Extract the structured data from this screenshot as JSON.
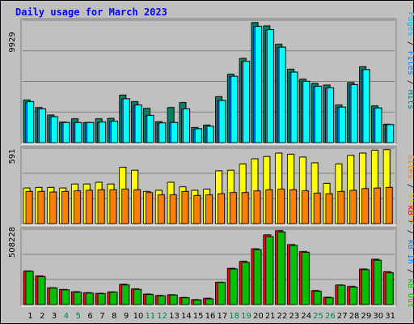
{
  "title": "Daily usage for March 2023",
  "colors": {
    "hits": "#00ffff",
    "files": "#0080ff",
    "pages": "#00c0ff",
    "pages_shadow": "#008060",
    "visits": "#ffff00",
    "sites": "#ff8000",
    "kb_in": "#00c000",
    "kb_out": "#ff0000",
    "title": "#0000ff",
    "weekend_day": "#00805c",
    "weekday_day": "#000000"
  },
  "right_labels": {
    "top": {
      "pages": "Pages",
      "sep1": " / ",
      "files": "Files",
      "sep2": " / ",
      "hits": "Hits"
    },
    "mid": {
      "visits": "Visits",
      "sep": " / ",
      "sites": "Sites"
    },
    "bot": {
      "kbout": "kB Out",
      "sep1": " / ",
      "kbin": "kB In",
      "sep2": " / ",
      "kbf": "kB F"
    }
  },
  "chart_data": [
    {
      "type": "bar",
      "title": "Daily usage for March 2023",
      "categories": [
        "1",
        "2",
        "3",
        "4",
        "5",
        "6",
        "7",
        "8",
        "9",
        "10",
        "11",
        "12",
        "13",
        "14",
        "15",
        "16",
        "17",
        "18",
        "19",
        "20",
        "21",
        "22",
        "23",
        "24",
        "25",
        "26",
        "27",
        "28",
        "29",
        "30",
        "31"
      ],
      "weekend": [
        4,
        5,
        11,
        12,
        18,
        19,
        25,
        26
      ],
      "ymax_label": "9929",
      "ymax": 9929,
      "series": [
        {
          "name": "Pages",
          "values": [
            5100,
            4200,
            3300,
            2450,
            2850,
            2400,
            2850,
            2900,
            5700,
            4900,
            4100,
            2500,
            4200,
            4800,
            1800,
            2100,
            5500,
            8200,
            10100,
            14400,
            14000,
            11800,
            8800,
            7600,
            7100,
            6900,
            4500,
            7200,
            9100,
            4400,
            2200
          ]
        },
        {
          "name": "Files",
          "values": [
            4800,
            4000,
            3050,
            2350,
            2350,
            2350,
            2400,
            2500,
            5200,
            4450,
            3200,
            2300,
            2350,
            4000,
            1600,
            1900,
            5000,
            7900,
            9700,
            13900,
            13500,
            11400,
            8400,
            7300,
            6700,
            6500,
            4200,
            6900,
            8700,
            4100,
            2100
          ]
        },
        {
          "name": "Hits",
          "values": [
            4900,
            4050,
            3100,
            2400,
            2400,
            2400,
            2450,
            2550,
            5250,
            4500,
            3250,
            2350,
            2400,
            4050,
            1650,
            1950,
            5050,
            7950,
            9750,
            13950,
            13550,
            11450,
            8450,
            7350,
            6750,
            6550,
            4250,
            6950,
            8750,
            4150,
            2150
          ]
        }
      ]
    },
    {
      "type": "bar",
      "categories": [
        "1",
        "2",
        "3",
        "4",
        "5",
        "6",
        "7",
        "8",
        "9",
        "10",
        "11",
        "12",
        "13",
        "14",
        "15",
        "16",
        "17",
        "18",
        "19",
        "20",
        "21",
        "22",
        "23",
        "24",
        "25",
        "26",
        "27",
        "28",
        "29",
        "30",
        "31"
      ],
      "ymax_label": "591",
      "ymax": 591,
      "series": [
        {
          "name": "Visits",
          "values": [
            310,
            315,
            315,
            310,
            345,
            345,
            360,
            345,
            490,
            465,
            280,
            290,
            360,
            320,
            290,
            300,
            460,
            465,
            520,
            565,
            585,
            615,
            605,
            580,
            530,
            350,
            520,
            595,
            615,
            640,
            645
          ]
        },
        {
          "name": "Sites",
          "values": [
            280,
            280,
            275,
            280,
            285,
            290,
            295,
            295,
            300,
            295,
            270,
            250,
            250,
            280,
            245,
            250,
            260,
            270,
            270,
            285,
            295,
            300,
            295,
            285,
            265,
            260,
            280,
            290,
            305,
            310,
            315
          ]
        }
      ]
    },
    {
      "type": "bar",
      "categories": [
        "1",
        "2",
        "3",
        "4",
        "5",
        "6",
        "7",
        "8",
        "9",
        "10",
        "11",
        "12",
        "13",
        "14",
        "15",
        "16",
        "17",
        "18",
        "19",
        "20",
        "21",
        "22",
        "23",
        "24",
        "25",
        "26",
        "27",
        "28",
        "29",
        "30",
        "31"
      ],
      "ymax_label": "508228",
      "ymax": 508228,
      "series": [
        {
          "name": "kB F",
          "values": [
            240000,
            205000,
            120000,
            108000,
            92000,
            85000,
            80000,
            90000,
            145000,
            112000,
            75000,
            65000,
            70000,
            50000,
            35000,
            45000,
            160000,
            260000,
            310000,
            400000,
            500000,
            530000,
            430000,
            380000,
            100000,
            52000,
            140000,
            130000,
            255000,
            325000,
            235000
          ]
        },
        {
          "name": "kB In",
          "values": [
            238000,
            200000,
            118000,
            105000,
            88000,
            82000,
            78000,
            88000,
            140000,
            108000,
            72000,
            62000,
            68000,
            48000,
            32000,
            40000,
            158000,
            255000,
            302000,
            393000,
            487000,
            520000,
            424000,
            375000,
            95000,
            48000,
            138000,
            125000,
            250000,
            318000,
            228000
          ]
        }
      ]
    }
  ]
}
